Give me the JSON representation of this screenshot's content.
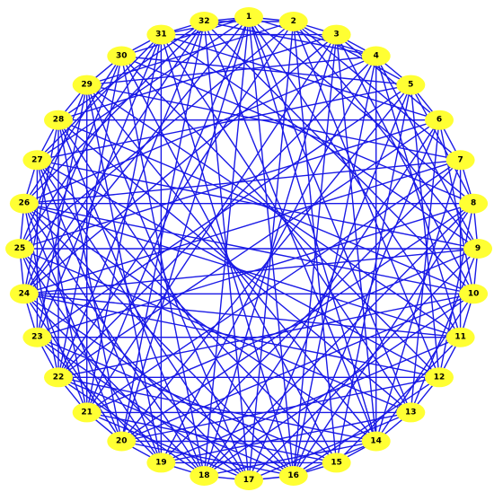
{
  "graph": {
    "type": "circular-network",
    "colors": {
      "node_fill": "#ffff33",
      "edge": "#1a1ae6",
      "label": "#000000",
      "background": "#ffffff"
    },
    "nodes": [
      {
        "id": 1,
        "label": "1"
      },
      {
        "id": 2,
        "label": "2"
      },
      {
        "id": 3,
        "label": "3"
      },
      {
        "id": 4,
        "label": "4"
      },
      {
        "id": 5,
        "label": "5"
      },
      {
        "id": 6,
        "label": "6"
      },
      {
        "id": 7,
        "label": "7"
      },
      {
        "id": 8,
        "label": "8"
      },
      {
        "id": 9,
        "label": "9"
      },
      {
        "id": 10,
        "label": "10"
      },
      {
        "id": 11,
        "label": "11"
      },
      {
        "id": 12,
        "label": "12"
      },
      {
        "id": 13,
        "label": "13"
      },
      {
        "id": 14,
        "label": "14"
      },
      {
        "id": 15,
        "label": "15"
      },
      {
        "id": 16,
        "label": "16"
      },
      {
        "id": 17,
        "label": "17"
      },
      {
        "id": 18,
        "label": "18"
      },
      {
        "id": 19,
        "label": "19"
      },
      {
        "id": 20,
        "label": "20"
      },
      {
        "id": 21,
        "label": "21"
      },
      {
        "id": 22,
        "label": "22"
      },
      {
        "id": 23,
        "label": "23"
      },
      {
        "id": 24,
        "label": "24"
      },
      {
        "id": 25,
        "label": "25"
      },
      {
        "id": 26,
        "label": "26"
      },
      {
        "id": 27,
        "label": "27"
      },
      {
        "id": 28,
        "label": "28"
      },
      {
        "id": 29,
        "label": "29"
      },
      {
        "id": 30,
        "label": "30"
      },
      {
        "id": 31,
        "label": "31"
      },
      {
        "id": 32,
        "label": "32"
      }
    ],
    "edges": [
      [
        1,
        2
      ],
      [
        1,
        4
      ],
      [
        1,
        8
      ],
      [
        1,
        13
      ],
      [
        1,
        16
      ],
      [
        1,
        18
      ],
      [
        1,
        20
      ],
      [
        1,
        24
      ],
      [
        1,
        27
      ],
      [
        1,
        30
      ],
      [
        1,
        31
      ],
      [
        1,
        32
      ],
      [
        1,
        11
      ],
      [
        1,
        14
      ],
      [
        1,
        21
      ],
      [
        2,
        3
      ],
      [
        2,
        5
      ],
      [
        2,
        7
      ],
      [
        2,
        12
      ],
      [
        2,
        15
      ],
      [
        2,
        17
      ],
      [
        2,
        22
      ],
      [
        2,
        25
      ],
      [
        2,
        29
      ],
      [
        2,
        32
      ],
      [
        2,
        9
      ],
      [
        3,
        4
      ],
      [
        3,
        6
      ],
      [
        3,
        10
      ],
      [
        3,
        14
      ],
      [
        3,
        18
      ],
      [
        3,
        21
      ],
      [
        3,
        24
      ],
      [
        3,
        28
      ],
      [
        3,
        31
      ],
      [
        3,
        16
      ],
      [
        4,
        5
      ],
      [
        4,
        9
      ],
      [
        4,
        11
      ],
      [
        4,
        16
      ],
      [
        4,
        19
      ],
      [
        4,
        22
      ],
      [
        4,
        26
      ],
      [
        4,
        29
      ],
      [
        4,
        32
      ],
      [
        4,
        14
      ],
      [
        5,
        6
      ],
      [
        5,
        8
      ],
      [
        5,
        12
      ],
      [
        5,
        17
      ],
      [
        5,
        20
      ],
      [
        5,
        23
      ],
      [
        5,
        27
      ],
      [
        5,
        30
      ],
      [
        5,
        15
      ],
      [
        6,
        7
      ],
      [
        6,
        10
      ],
      [
        6,
        13
      ],
      [
        6,
        18
      ],
      [
        6,
        22
      ],
      [
        6,
        25
      ],
      [
        6,
        28
      ],
      [
        6,
        31
      ],
      [
        6,
        16
      ],
      [
        7,
        8
      ],
      [
        7,
        11
      ],
      [
        7,
        14
      ],
      [
        7,
        19
      ],
      [
        7,
        24
      ],
      [
        7,
        26
      ],
      [
        7,
        29
      ],
      [
        7,
        21
      ],
      [
        8,
        9
      ],
      [
        8,
        12
      ],
      [
        8,
        16
      ],
      [
        8,
        20
      ],
      [
        8,
        23
      ],
      [
        8,
        26
      ],
      [
        8,
        30
      ],
      [
        8,
        18
      ],
      [
        9,
        10
      ],
      [
        9,
        13
      ],
      [
        9,
        17
      ],
      [
        9,
        21
      ],
      [
        9,
        25
      ],
      [
        9,
        27
      ],
      [
        9,
        31
      ],
      [
        9,
        24
      ],
      [
        10,
        11
      ],
      [
        10,
        14
      ],
      [
        10,
        18
      ],
      [
        10,
        22
      ],
      [
        10,
        24
      ],
      [
        10,
        28
      ],
      [
        10,
        32
      ],
      [
        10,
        20
      ],
      [
        10,
        26
      ],
      [
        11,
        12
      ],
      [
        11,
        15
      ],
      [
        11,
        19
      ],
      [
        11,
        23
      ],
      [
        11,
        26
      ],
      [
        11,
        29
      ],
      [
        11,
        24
      ],
      [
        12,
        13
      ],
      [
        12,
        16
      ],
      [
        12,
        20
      ],
      [
        12,
        24
      ],
      [
        12,
        27
      ],
      [
        12,
        30
      ],
      [
        12,
        22
      ],
      [
        13,
        14
      ],
      [
        13,
        17
      ],
      [
        13,
        21
      ],
      [
        13,
        25
      ],
      [
        13,
        28
      ],
      [
        13,
        31
      ],
      [
        13,
        19
      ],
      [
        14,
        15
      ],
      [
        14,
        18
      ],
      [
        14,
        22
      ],
      [
        14,
        26
      ],
      [
        14,
        29
      ],
      [
        14,
        32
      ],
      [
        14,
        16
      ],
      [
        14,
        20
      ],
      [
        15,
        16
      ],
      [
        15,
        19
      ],
      [
        15,
        23
      ],
      [
        15,
        27
      ],
      [
        15,
        30
      ],
      [
        15,
        21
      ],
      [
        16,
        17
      ],
      [
        16,
        20
      ],
      [
        16,
        24
      ],
      [
        16,
        28
      ],
      [
        16,
        31
      ],
      [
        16,
        26
      ],
      [
        16,
        22
      ],
      [
        17,
        18
      ],
      [
        17,
        21
      ],
      [
        17,
        25
      ],
      [
        17,
        29
      ],
      [
        17,
        32
      ],
      [
        17,
        23
      ],
      [
        17,
        27
      ],
      [
        18,
        19
      ],
      [
        18,
        22
      ],
      [
        18,
        26
      ],
      [
        18,
        30
      ],
      [
        18,
        24
      ],
      [
        18,
        28
      ],
      [
        19,
        20
      ],
      [
        19,
        23
      ],
      [
        19,
        27
      ],
      [
        19,
        31
      ],
      [
        19,
        25
      ],
      [
        19,
        29
      ],
      [
        20,
        21
      ],
      [
        20,
        24
      ],
      [
        20,
        28
      ],
      [
        20,
        32
      ],
      [
        20,
        26
      ],
      [
        21,
        22
      ],
      [
        21,
        25
      ],
      [
        21,
        29
      ],
      [
        21,
        27
      ],
      [
        21,
        31
      ],
      [
        22,
        23
      ],
      [
        22,
        26
      ],
      [
        22,
        30
      ],
      [
        22,
        28
      ],
      [
        22,
        32
      ],
      [
        23,
        24
      ],
      [
        23,
        27
      ],
      [
        23,
        31
      ],
      [
        23,
        29
      ],
      [
        24,
        25
      ],
      [
        24,
        28
      ],
      [
        24,
        32
      ],
      [
        24,
        30
      ],
      [
        25,
        26
      ],
      [
        25,
        29
      ],
      [
        25,
        31
      ],
      [
        26,
        27
      ],
      [
        26,
        30
      ],
      [
        26,
        32
      ],
      [
        27,
        28
      ],
      [
        27,
        31
      ],
      [
        28,
        29
      ],
      [
        28,
        32
      ],
      [
        29,
        30
      ],
      [
        30,
        31
      ],
      [
        31,
        32
      ]
    ]
  }
}
